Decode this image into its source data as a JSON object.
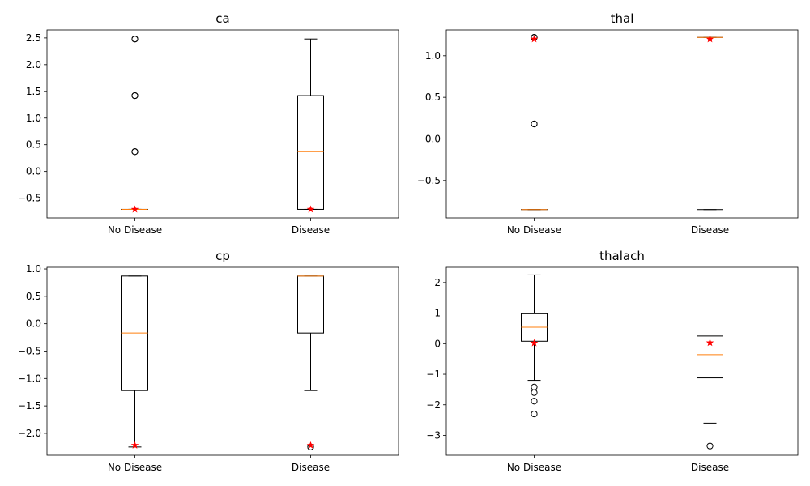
{
  "colors": {
    "box": "#000000",
    "median": "#ff7f0e",
    "mean_marker": "#ff0000",
    "background": "#ffffff"
  },
  "chart_data": [
    {
      "type": "box",
      "title": "ca",
      "categories": [
        "No Disease",
        "Disease"
      ],
      "ylim": [
        -0.87,
        2.65
      ],
      "yticks": [
        -0.5,
        0.0,
        0.5,
        1.0,
        1.5,
        2.0,
        2.5
      ],
      "ytick_labels": [
        "−0.5",
        "0.0",
        "0.5",
        "1.0",
        "1.5",
        "2.0",
        "2.5"
      ],
      "boxes": [
        {
          "category": "No Disease",
          "q1": -0.71,
          "median": -0.71,
          "q3": -0.71,
          "whisker_low": -0.71,
          "whisker_high": -0.71,
          "mean": -0.71,
          "fliers": [
            0.37,
            0.37,
            1.42,
            1.42,
            2.48,
            2.48
          ]
        },
        {
          "category": "Disease",
          "q1": -0.71,
          "median": 0.37,
          "q3": 1.42,
          "whisker_low": -0.71,
          "whisker_high": 2.48,
          "mean": -0.71,
          "fliers": []
        }
      ]
    },
    {
      "type": "box",
      "title": "thal",
      "categories": [
        "No Disease",
        "Disease"
      ],
      "ylim": [
        -0.95,
        1.31
      ],
      "yticks": [
        -0.5,
        0.0,
        0.5,
        1.0
      ],
      "ytick_labels": [
        "−0.5",
        "0.0",
        "0.5",
        "1.0"
      ],
      "boxes": [
        {
          "category": "No Disease",
          "q1": -0.85,
          "median": -0.85,
          "q3": -0.85,
          "whisker_low": -0.85,
          "whisker_high": -0.85,
          "mean": 1.2,
          "fliers": [
            0.18,
            0.18,
            1.22,
            1.22,
            1.22
          ]
        },
        {
          "category": "Disease",
          "q1": -0.85,
          "median": 1.22,
          "q3": 1.22,
          "whisker_low": -0.85,
          "whisker_high": 1.22,
          "mean": 1.2,
          "fliers": []
        }
      ]
    },
    {
      "type": "box",
      "title": "cp",
      "categories": [
        "No Disease",
        "Disease"
      ],
      "ylim": [
        -2.4,
        1.03
      ],
      "yticks": [
        -2.0,
        -1.5,
        -1.0,
        -0.5,
        0.0,
        0.5,
        1.0
      ],
      "ytick_labels": [
        "−2.0",
        "−1.5",
        "−1.0",
        "−0.5",
        "0.0",
        "0.5",
        "1.0"
      ],
      "boxes": [
        {
          "category": "No Disease",
          "q1": -1.22,
          "median": -0.17,
          "q3": 0.87,
          "whisker_low": -2.25,
          "whisker_high": 0.87,
          "mean": -2.22,
          "fliers": []
        },
        {
          "category": "Disease",
          "q1": -0.17,
          "median": 0.87,
          "q3": 0.87,
          "whisker_low": -1.22,
          "whisker_high": 0.87,
          "mean": -2.22,
          "fliers": [
            -2.25,
            -2.25
          ]
        }
      ]
    },
    {
      "type": "box",
      "title": "thalach",
      "categories": [
        "No Disease",
        "Disease"
      ],
      "ylim": [
        -3.65,
        2.5
      ],
      "yticks": [
        -3,
        -2,
        -1,
        0,
        1,
        2
      ],
      "ytick_labels": [
        "−3",
        "−2",
        "−1",
        "0",
        "1",
        "2"
      ],
      "boxes": [
        {
          "category": "No Disease",
          "q1": 0.08,
          "median": 0.54,
          "q3": 0.98,
          "whisker_low": -1.2,
          "whisker_high": 2.25,
          "mean": 0.02,
          "fliers": [
            -1.42,
            -1.6,
            -1.88,
            -2.3
          ]
        },
        {
          "category": "Disease",
          "q1": -1.12,
          "median": -0.36,
          "q3": 0.25,
          "whisker_low": -2.6,
          "whisker_high": 1.4,
          "mean": 0.03,
          "fliers": [
            -3.35
          ]
        }
      ]
    }
  ]
}
